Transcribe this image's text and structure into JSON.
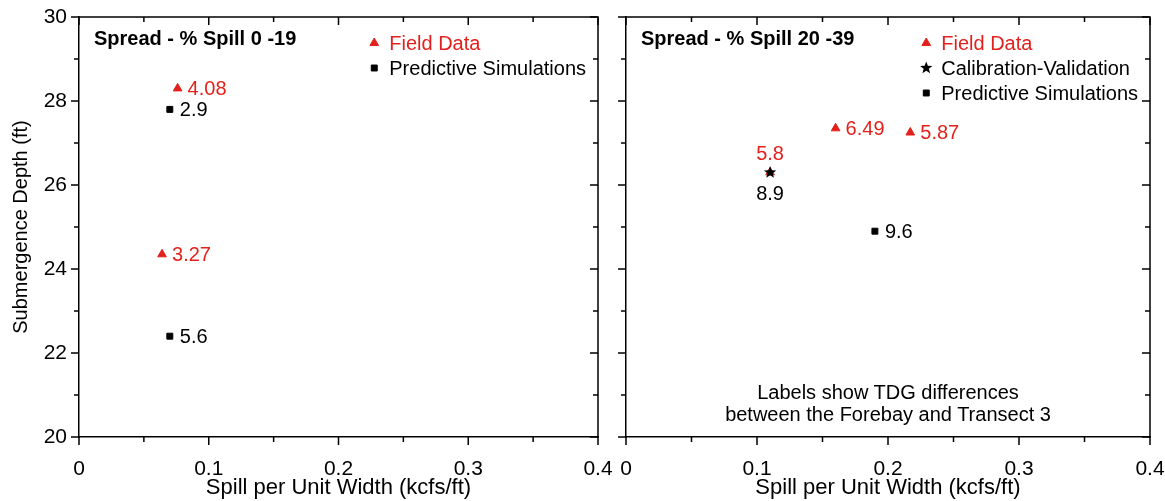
{
  "chart_data": [
    {
      "type": "scatter",
      "title": "Spread - % Spill 0 -19",
      "xlabel": "Spill per Unit Width (kcfs/ft)",
      "ylabel": "Submergence Depth (ft)",
      "xlim": [
        0,
        0.4
      ],
      "xticks": [
        0,
        {
          "value": 0.05,
          "label": null
        },
        0.1,
        {
          "value": 0.15,
          "label": null
        },
        0.2,
        {
          "value": 0.25,
          "label": null
        },
        0.3,
        {
          "value": 0.35,
          "label": null
        },
        0.4
      ],
      "ylim": [
        20,
        30
      ],
      "yticks": [
        20,
        {
          "value": 21,
          "label": null
        },
        22,
        {
          "value": 23,
          "label": null
        },
        24,
        {
          "value": 25,
          "label": null
        },
        26,
        {
          "value": 27,
          "label": null
        },
        28,
        {
          "value": 29,
          "label": null
        },
        30
      ],
      "legend": "top right",
      "annotations": [
        {
          "text": "4.08",
          "x": 0.076,
          "y": 28.3
        },
        {
          "text": "3.27",
          "x": 0.064,
          "y": 24.35
        },
        {
          "text": "2.9",
          "x": 0.07,
          "y": 27.8
        },
        {
          "text": "5.6",
          "x": 0.07,
          "y": 22.4
        }
      ],
      "series": [
        {
          "name": "Field Data",
          "color": "#e3211c",
          "marker": "triangle",
          "x": [
            0.076,
            0.064
          ],
          "values": [
            28.3,
            24.35
          ]
        },
        {
          "name": "Predictive Simulations",
          "color": "#000000",
          "marker": "square",
          "x": [
            0.07,
            0.07
          ],
          "values": [
            27.8,
            22.4
          ]
        }
      ]
    },
    {
      "type": "scatter",
      "title": "Spread - % Spill 20 -39",
      "xlabel": "Spill per Unit Width (kcfs/ft)",
      "xlim": [
        0,
        0.4
      ],
      "xticks": [
        0,
        {
          "value": 0.05,
          "label": null
        },
        0.1,
        {
          "value": 0.15,
          "label": null
        },
        0.2,
        {
          "value": 0.25,
          "label": null
        },
        0.3,
        {
          "value": 0.35,
          "label": null
        },
        0.4
      ],
      "ylim": [
        20,
        30
      ],
      "yticks": [
        20,
        {
          "value": 21,
          "label": null
        },
        22,
        {
          "value": 23,
          "label": null
        },
        24,
        {
          "value": 25,
          "label": null
        },
        26,
        {
          "value": 27,
          "label": null
        },
        28,
        {
          "value": 29,
          "label": null
        },
        30
      ],
      "tick_labels": "x",
      "legend": "top right",
      "annotations": [
        "Labels show TDG differences\nbetween the Forebay and Transect 3",
        {
          "text": "5.8",
          "x": 0.11,
          "y": 26.3
        },
        {
          "text": "6.49",
          "x": 0.16,
          "y": 27.35
        },
        {
          "text": "5.87",
          "x": 0.217,
          "y": 27.25
        },
        {
          "text": "8.9",
          "x": 0.11,
          "y": 26.3
        },
        {
          "text": "9.6",
          "x": 0.19,
          "y": 24.9
        }
      ],
      "series": [
        {
          "name": "Field Data",
          "color": "#e3211c",
          "marker": "triangle",
          "x": [
            0.11,
            0.16,
            0.217
          ],
          "values": [
            26.3,
            27.35,
            27.25
          ]
        },
        {
          "name": "Calibration-Validation",
          "color": "#000000",
          "marker": "star",
          "x": [
            0.11
          ],
          "values": [
            26.3
          ]
        },
        {
          "name": "Predictive Simulations",
          "color": "#000000",
          "marker": "square",
          "x": [
            0.19
          ],
          "values": [
            24.9
          ]
        }
      ]
    }
  ]
}
